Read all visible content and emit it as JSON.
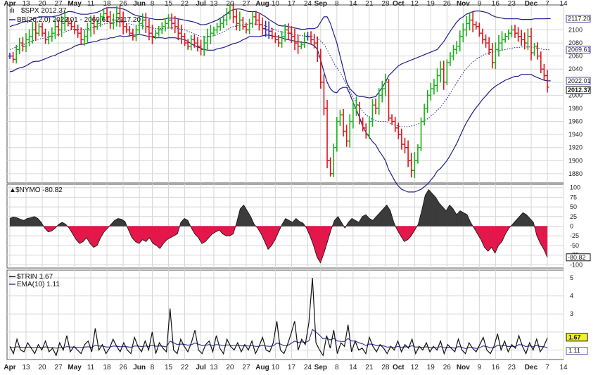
{
  "chart_data": [
    {
      "type": "ohlc",
      "panel": "price",
      "legend_title": "$SPX 2012.37",
      "legend_bb": "BB(20,2.0) 2022.01 - 2069.61 - 2117.20",
      "y_ticks": [
        1880,
        1900,
        1920,
        1940,
        1960,
        1980,
        2000,
        2020,
        2040,
        2060,
        2080,
        2100
      ],
      "ylim": [
        1868,
        2135
      ],
      "last_price": 2012.37,
      "last_price_label": "2012.37",
      "bb_upper_label": "2117.20",
      "bb_mid_label": "2069.61",
      "bb_lower_label": "2022.01",
      "colors": {
        "up": "#19b119",
        "down": "#d9161c",
        "neutral": "#2a27c4",
        "band": "#1f1f8a"
      },
      "series_close": [
        2060,
        2055,
        2070,
        2080,
        2075,
        2085,
        2090,
        2100,
        2095,
        2105,
        2095,
        2085,
        2090,
        2095,
        2105,
        2100,
        2110,
        2115,
        2110,
        2105,
        2100,
        2095,
        2085,
        2090,
        2100,
        2110,
        2105,
        2110,
        2120,
        2125,
        2120,
        2110,
        2115,
        2125,
        2115,
        2105,
        2100,
        2095,
        2090,
        2100,
        2110,
        2115,
        2105,
        2095,
        2090,
        2095,
        2100,
        2105,
        2110,
        2115,
        2110,
        2105,
        2095,
        2090,
        2080,
        2075,
        2085,
        2080,
        2075,
        2070,
        2080,
        2090,
        2095,
        2100,
        2105,
        2110,
        2115,
        2125,
        2130,
        2120,
        2110,
        2115,
        2105,
        2100,
        2110,
        2120,
        2115,
        2108,
        2102,
        2100,
        2098,
        2090,
        2085,
        2080,
        2090,
        2100,
        2095,
        2090,
        2080,
        2075,
        2078,
        2090,
        2090,
        2085,
        2080,
        2060,
        2020,
        1980,
        1900,
        1880,
        1920,
        1960,
        1970,
        1945,
        1930,
        1960,
        1980,
        1985,
        1960,
        1950,
        1940,
        1960,
        1985,
        1980,
        2000,
        2010,
        2020,
        1965,
        1960,
        1950,
        1940,
        1925,
        1920,
        1900,
        1885,
        1900,
        1920,
        1960,
        1980,
        2000,
        2010,
        2015,
        2030,
        2040,
        2020,
        2050,
        2060,
        2070,
        2075,
        2090,
        2100,
        2110,
        2115,
        2108,
        2105,
        2095,
        2085,
        2080,
        2070,
        2050,
        2070,
        2080,
        2085,
        2090,
        2095,
        2100,
        2095,
        2090,
        2085,
        2080,
        2090,
        2065,
        2075,
        2060,
        2040,
        2030,
        2012.37
      ],
      "bb_upper": [
        2105,
        2107,
        2108,
        2110,
        2112,
        2113,
        2114,
        2116,
        2118,
        2120,
        2120,
        2120,
        2120,
        2120,
        2121,
        2122,
        2124,
        2126,
        2128,
        2128,
        2127,
        2125,
        2124,
        2124,
        2124,
        2125,
        2126,
        2127,
        2129,
        2132,
        2134,
        2134,
        2134,
        2134,
        2133,
        2132,
        2130,
        2127,
        2124,
        2122,
        2121,
        2120,
        2119,
        2118,
        2117,
        2116,
        2116,
        2116,
        2117,
        2118,
        2118,
        2118,
        2117,
        2116,
        2115,
        2114,
        2113,
        2112,
        2110,
        2108,
        2108,
        2109,
        2111,
        2113,
        2115,
        2118,
        2121,
        2125,
        2129,
        2131,
        2132,
        2132,
        2131,
        2129,
        2128,
        2128,
        2128,
        2126,
        2123,
        2120,
        2116,
        2113,
        2110,
        2107,
        2106,
        2106,
        2105,
        2104,
        2103,
        2102,
        2101,
        2101,
        2102,
        2102,
        2102,
        2104,
        2112,
        2120,
        2120,
        2110,
        2095,
        2080,
        2060,
        2040,
        2020,
        2010,
        2005,
        2000,
        1998,
        1998,
        1997,
        1996,
        1997,
        1998,
        2005,
        2012,
        2020,
        2030,
        2035,
        2040,
        2045,
        2048,
        2050,
        2052,
        2054,
        2056,
        2058,
        2060,
        2062,
        2064,
        2066,
        2068,
        2070,
        2076,
        2082,
        2090,
        2098,
        2105,
        2112,
        2117,
        2120,
        2124,
        2126,
        2128,
        2129,
        2129,
        2128,
        2127,
        2125,
        2122,
        2120,
        2119,
        2118,
        2117,
        2117,
        2117,
        2117,
        2117,
        2116,
        2116,
        2116,
        2116,
        2117,
        2117,
        2117,
        2117,
        2117.2,
        2117.2
      ],
      "bb_mid": [
        2070,
        2072,
        2074,
        2076,
        2077,
        2079,
        2081,
        2083,
        2085,
        2086,
        2087,
        2088,
        2089,
        2090,
        2091,
        2093,
        2095,
        2097,
        2099,
        2100,
        2101,
        2101,
        2101,
        2101,
        2102,
        2103,
        2104,
        2105,
        2107,
        2109,
        2110,
        2111,
        2111,
        2112,
        2112,
        2111,
        2110,
        2109,
        2108,
        2107,
        2107,
        2106,
        2105,
        2104,
        2103,
        2102,
        2102,
        2102,
        2102,
        2103,
        2103,
        2103,
        2102,
        2101,
        2100,
        2098,
        2096,
        2094,
        2092,
        2090,
        2089,
        2089,
        2090,
        2091,
        2093,
        2095,
        2097,
        2100,
        2103,
        2105,
        2106,
        2107,
        2108,
        2108,
        2109,
        2109,
        2109,
        2108,
        2107,
        2106,
        2104,
        2102,
        2100,
        2098,
        2097,
        2096,
        2095,
        2094,
        2093,
        2092,
        2091,
        2091,
        2091,
        2090,
        2089,
        2087,
        2083,
        2078,
        2070,
        2060,
        2050,
        2042,
        2035,
        2026,
        2016,
        2006,
        1997,
        1989,
        1982,
        1975,
        1970,
        1966,
        1963,
        1961,
        1960,
        1960,
        1960,
        1958,
        1956,
        1954,
        1953,
        1952,
        1952,
        1952,
        1953,
        1954,
        1956,
        1958,
        1961,
        1964,
        1968,
        1972,
        1977,
        1982,
        1988,
        1995,
        2003,
        2011,
        2019,
        2027,
        2034,
        2041,
        2046,
        2051,
        2055,
        2058,
        2061,
        2063,
        2065,
        2066,
        2067,
        2068,
        2069,
        2070,
        2071,
        2072,
        2073,
        2073,
        2074,
        2074,
        2074,
        2074,
        2073,
        2072,
        2071,
        2070,
        2069.61,
        2069.61
      ],
      "bb_lower": [
        2036,
        2037,
        2040,
        2042,
        2043,
        2045,
        2048,
        2051,
        2052,
        2052,
        2054,
        2056,
        2058,
        2060,
        2061,
        2064,
        2066,
        2068,
        2070,
        2072,
        2075,
        2077,
        2078,
        2078,
        2080,
        2081,
        2082,
        2083,
        2085,
        2086,
        2086,
        2088,
        2088,
        2090,
        2091,
        2090,
        2090,
        2091,
        2092,
        2092,
        2093,
        2092,
        2091,
        2090,
        2089,
        2088,
        2088,
        2088,
        2087,
        2088,
        2088,
        2088,
        2087,
        2086,
        2085,
        2082,
        2079,
        2076,
        2074,
        2072,
        2070,
        2069,
        2069,
        2069,
        2071,
        2072,
        2073,
        2075,
        2077,
        2079,
        2080,
        2082,
        2085,
        2087,
        2090,
        2090,
        2090,
        2090,
        2091,
        2092,
        2092,
        2091,
        2090,
        2089,
        2088,
        2086,
        2085,
        2084,
        2083,
        2082,
        2081,
        2081,
        2080,
        2078,
        2076,
        2070,
        2054,
        2036,
        2020,
        2010,
        2005,
        2004,
        2010,
        2012,
        2012,
        2002,
        1989,
        1978,
        1966,
        1952,
        1943,
        1936,
        1929,
        1924,
        1915,
        1908,
        1900,
        1886,
        1877,
        1868,
        1861,
        1856,
        1854,
        1852,
        1852,
        1852,
        1854,
        1856,
        1860,
        1864,
        1870,
        1876,
        1884,
        1888,
        1894,
        1900,
        1908,
        1917,
        1926,
        1937,
        1948,
        1958,
        1966,
        1974,
        1981,
        1987,
        1994,
        1999,
        2005,
        2010,
        2014,
        2017,
        2020,
        2023,
        2025,
        2027,
        2029,
        2029,
        2032,
        2032,
        2032,
        2032,
        2029,
        2027,
        2025,
        2023,
        2022.01,
        2022.01
      ]
    },
    {
      "type": "area",
      "panel": "breadth",
      "legend_title": "$NYMO -80.82",
      "last_value": -80.82,
      "last_value_label": "-80.82",
      "y_ticks": [
        100,
        75,
        50,
        25,
        0,
        -25,
        -50,
        -75,
        -100
      ],
      "ylim": [
        -105,
        105
      ],
      "colors": {
        "positive": "#3b3b3b",
        "negative": "#e3174a"
      },
      "values": [
        20,
        24,
        22,
        18,
        15,
        20,
        22,
        25,
        20,
        10,
        -5,
        -15,
        -12,
        -5,
        5,
        10,
        5,
        -5,
        -20,
        -35,
        -45,
        -40,
        -30,
        -45,
        -55,
        -50,
        -30,
        -15,
        -5,
        5,
        15,
        20,
        18,
        12,
        -10,
        -30,
        -40,
        -45,
        -35,
        -40,
        -30,
        -45,
        -50,
        -58,
        -45,
        -35,
        -30,
        -25,
        -20,
        10,
        20,
        15,
        -5,
        -20,
        -30,
        -45,
        -40,
        -30,
        -20,
        -15,
        -10,
        -20,
        -25,
        -25,
        -20,
        10,
        45,
        55,
        40,
        25,
        5,
        -5,
        -20,
        -40,
        -60,
        -50,
        -35,
        -15,
        5,
        20,
        15,
        10,
        20,
        12,
        8,
        -5,
        -25,
        -50,
        -80,
        -95,
        -70,
        -40,
        -10,
        15,
        25,
        10,
        -5,
        10,
        20,
        15,
        10,
        25,
        30,
        20,
        15,
        25,
        35,
        45,
        55,
        40,
        10,
        -10,
        -25,
        -40,
        -35,
        -25,
        -10,
        5,
        40,
        80,
        95,
        85,
        75,
        60,
        50,
        40,
        55,
        45,
        30,
        40,
        35,
        30,
        10,
        -5,
        -20,
        -35,
        -55,
        -65,
        -55,
        -70,
        -50,
        -40,
        -20,
        -5,
        5,
        15,
        25,
        35,
        30,
        20,
        10,
        -25,
        -45,
        -60,
        -80.82
      ]
    },
    {
      "type": "line",
      "panel": "trin",
      "legend_trin": "$TRIN 1.67",
      "legend_ema": "EMA(10) 1.11",
      "trin_last_label": "1.67",
      "ema_last_label": "1.11",
      "y_ticks": [
        1,
        2,
        3,
        4,
        5
      ],
      "ylim": [
        0.55,
        5.35
      ],
      "colors": {
        "trin": "#111111",
        "ema": "#3a3a9c",
        "highlight": "#f2f224"
      },
      "trin": [
        1.2,
        0.8,
        1.6,
        1.0,
        0.9,
        1.4,
        1.1,
        0.8,
        1.3,
        1.0,
        1.5,
        0.9,
        1.1,
        0.7,
        1.4,
        1.0,
        1.8,
        0.9,
        1.2,
        1.0,
        0.8,
        1.3,
        1.5,
        0.9,
        2.2,
        1.0,
        1.3,
        0.8,
        1.1,
        1.6,
        1.2,
        0.9,
        1.4,
        1.0,
        0.8,
        1.7,
        1.2,
        0.9,
        1.5,
        1.0,
        2.0,
        0.8,
        1.4,
        1.1,
        0.9,
        3.3,
        1.0,
        0.8,
        1.6,
        1.2,
        0.9,
        1.4,
        2.1,
        1.0,
        0.8,
        1.3,
        1.5,
        0.9,
        1.8,
        1.1,
        0.8,
        1.6,
        1.2,
        1.0,
        1.4,
        0.9,
        1.3,
        1.0,
        1.5,
        0.8,
        1.2,
        1.7,
        1.0,
        0.9,
        1.4,
        2.6,
        1.0,
        0.8,
        1.3,
        1.9,
        2.6,
        1.0,
        1.6,
        1.3,
        2.5,
        5.0,
        1.4,
        1.0,
        0.7,
        1.8,
        1.1,
        2.1,
        0.8,
        1.4,
        1.2,
        2.4,
        0.9,
        1.5,
        1.0,
        1.1,
        0.8,
        1.7,
        1.2,
        0.9,
        1.3,
        1.1,
        0.8,
        1.2,
        1.0,
        1.5,
        0.9,
        1.3,
        1.1,
        1.6,
        0.8,
        1.2,
        1.0,
        1.4,
        0.9,
        1.2,
        1.0,
        1.5,
        0.8,
        1.3,
        1.1,
        0.9,
        1.6,
        1.0,
        0.8,
        1.4,
        1.1,
        0.9,
        1.3,
        1.7,
        1.0,
        0.8,
        1.2,
        1.9,
        1.0,
        1.5,
        0.9,
        1.3,
        1.1,
        1.8,
        1.2,
        0.8,
        1.4,
        1.0,
        1.6,
        0.9,
        1.2,
        1.67
      ],
      "ema": [
        1.15,
        1.12,
        1.18,
        1.15,
        1.12,
        1.16,
        1.14,
        1.12,
        1.15,
        1.13,
        1.17,
        1.14,
        1.14,
        1.1,
        1.13,
        1.12,
        1.19,
        1.16,
        1.16,
        1.14,
        1.12,
        1.16,
        1.18,
        1.14,
        1.26,
        1.22,
        1.22,
        1.17,
        1.16,
        1.22,
        1.21,
        1.18,
        1.2,
        1.18,
        1.15,
        1.22,
        1.22,
        1.19,
        1.22,
        1.2,
        1.26,
        1.21,
        1.23,
        1.21,
        1.18,
        1.49,
        1.4,
        1.3,
        1.33,
        1.31,
        1.27,
        1.29,
        1.39,
        1.32,
        1.25,
        1.26,
        1.3,
        1.25,
        1.3,
        1.28,
        1.24,
        1.28,
        1.27,
        1.24,
        1.27,
        1.23,
        1.25,
        1.22,
        1.25,
        1.2,
        1.21,
        1.26,
        1.22,
        1.2,
        1.23,
        1.39,
        1.33,
        1.24,
        1.25,
        1.36,
        1.5,
        1.42,
        1.45,
        1.42,
        1.51,
        2.14,
        2.0,
        1.82,
        1.62,
        1.66,
        1.56,
        1.65,
        1.5,
        1.48,
        1.47,
        1.64,
        1.5,
        1.5,
        1.41,
        1.35,
        1.25,
        1.33,
        1.31,
        1.24,
        1.25,
        1.23,
        1.16,
        1.17,
        1.14,
        1.2,
        1.15,
        1.18,
        1.17,
        1.24,
        1.16,
        1.17,
        1.14,
        1.18,
        1.13,
        1.14,
        1.12,
        1.19,
        1.12,
        1.15,
        1.14,
        1.1,
        1.19,
        1.15,
        1.08,
        1.14,
        1.13,
        1.09,
        1.13,
        1.23,
        1.19,
        1.12,
        1.13,
        1.27,
        1.22,
        1.26,
        1.19,
        1.21,
        1.19,
        1.3,
        1.28,
        1.19,
        1.23,
        1.18,
        1.26,
        1.19,
        1.19,
        1.11
      ]
    }
  ],
  "x_axis": {
    "tick_labels": [
      "Apr",
      "13",
      "20",
      "27",
      "May",
      "11",
      "18",
      "26",
      "Jun",
      "8",
      "15",
      "22",
      "Jul",
      "13",
      "20",
      "27",
      "Aug",
      "10",
      "17",
      "24",
      "Sep",
      "8",
      "14",
      "21",
      "28",
      "Oct",
      "12",
      "19",
      "26",
      "Nov",
      "9",
      "16",
      "23",
      "Dec",
      "7",
      "14"
    ],
    "month_labels": [
      "Apr",
      "May",
      "Jun",
      "Jul",
      "Aug",
      "Sep",
      "Oct",
      "Nov",
      "Dec"
    ],
    "tick_bar_index": [
      0,
      5,
      10,
      15,
      20,
      25,
      30,
      35,
      40,
      44,
      49,
      54,
      59,
      63,
      68,
      73,
      78,
      82,
      87,
      92,
      96,
      101,
      106,
      111,
      116,
      120,
      125,
      130,
      135,
      140,
      145,
      150,
      155,
      161,
      166,
      171
    ]
  }
}
